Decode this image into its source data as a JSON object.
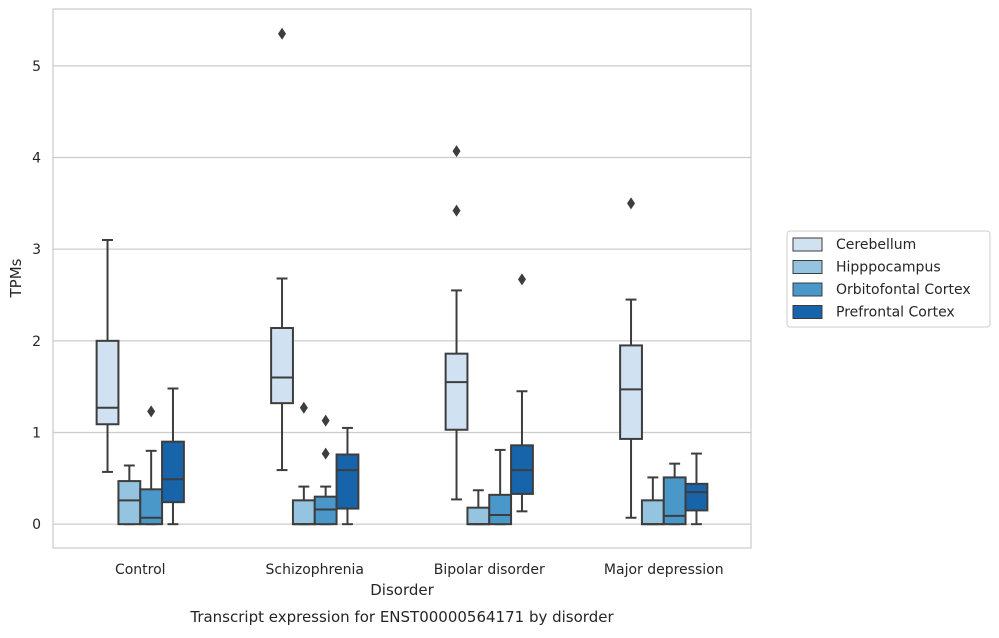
{
  "chart_data": {
    "type": "box",
    "caption": "Transcript expression for ENST00000564171 by disorder",
    "xlabel": "Disorder",
    "ylabel": "TPMs",
    "ylim": [
      -0.26,
      5.62
    ],
    "yticks": [
      0,
      1,
      2,
      3,
      4,
      5
    ],
    "grid": "horizontal",
    "legend_position": "right",
    "categories": [
      "Control",
      "Schizophrenia",
      "Bipolar disorder",
      "Major depression"
    ],
    "series": [
      {
        "name": "Cerebellum",
        "color": "#d0e1f2",
        "boxes": [
          {
            "whisker_low": 0.57,
            "q1": 1.09,
            "median": 1.27,
            "q3": 2.0,
            "whisker_high": 3.1,
            "outliers": []
          },
          {
            "whisker_low": 0.59,
            "q1": 1.32,
            "median": 1.6,
            "q3": 2.14,
            "whisker_high": 2.68,
            "outliers": [
              5.35
            ]
          },
          {
            "whisker_low": 0.27,
            "q1": 1.03,
            "median": 1.55,
            "q3": 1.86,
            "whisker_high": 2.55,
            "outliers": [
              3.42,
              4.07
            ]
          },
          {
            "whisker_low": 0.07,
            "q1": 0.93,
            "median": 1.47,
            "q3": 1.95,
            "whisker_high": 2.45,
            "outliers": [
              3.5
            ]
          }
        ]
      },
      {
        "name": "Hipppocampus",
        "color": "#94c4df",
        "boxes": [
          {
            "whisker_low": 0.0,
            "q1": 0.0,
            "median": 0.26,
            "q3": 0.47,
            "whisker_high": 0.64,
            "outliers": []
          },
          {
            "whisker_low": 0.0,
            "q1": 0.0,
            "median": 0.0,
            "q3": 0.26,
            "whisker_high": 0.41,
            "outliers": [
              1.27
            ]
          },
          {
            "whisker_low": 0.0,
            "q1": 0.0,
            "median": 0.0,
            "q3": 0.18,
            "whisker_high": 0.37,
            "outliers": []
          },
          {
            "whisker_low": 0.0,
            "q1": 0.0,
            "median": 0.0,
            "q3": 0.26,
            "whisker_high": 0.51,
            "outliers": []
          }
        ]
      },
      {
        "name": "Orbitofontal Cortex",
        "color": "#4a98c9",
        "boxes": [
          {
            "whisker_low": 0.0,
            "q1": 0.0,
            "median": 0.07,
            "q3": 0.38,
            "whisker_high": 0.8,
            "outliers": [
              1.23
            ]
          },
          {
            "whisker_low": 0.0,
            "q1": 0.0,
            "median": 0.16,
            "q3": 0.3,
            "whisker_high": 0.41,
            "outliers": [
              0.77,
              1.13
            ]
          },
          {
            "whisker_low": 0.0,
            "q1": 0.0,
            "median": 0.1,
            "q3": 0.32,
            "whisker_high": 0.81,
            "outliers": []
          },
          {
            "whisker_low": 0.0,
            "q1": 0.0,
            "median": 0.09,
            "q3": 0.51,
            "whisker_high": 0.66,
            "outliers": []
          }
        ]
      },
      {
        "name": "Prefrontal Cortex",
        "color": "#1764ab",
        "boxes": [
          {
            "whisker_low": 0.0,
            "q1": 0.24,
            "median": 0.49,
            "q3": 0.9,
            "whisker_high": 1.48,
            "outliers": []
          },
          {
            "whisker_low": 0.0,
            "q1": 0.17,
            "median": 0.59,
            "q3": 0.76,
            "whisker_high": 1.05,
            "outliers": []
          },
          {
            "whisker_low": 0.14,
            "q1": 0.33,
            "median": 0.59,
            "q3": 0.86,
            "whisker_high": 1.45,
            "outliers": [
              2.67
            ]
          },
          {
            "whisker_low": 0.0,
            "q1": 0.15,
            "median": 0.35,
            "q3": 0.44,
            "whisker_high": 0.77,
            "outliers": []
          }
        ]
      }
    ]
  }
}
